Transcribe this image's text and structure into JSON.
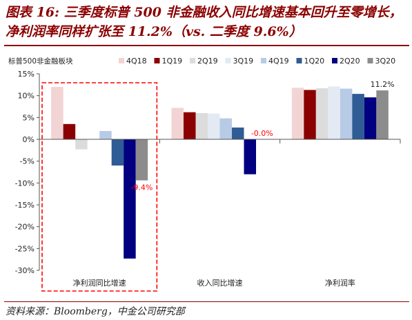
{
  "figure": {
    "title": "图表 16: 三季度标普 500 非金融收入同比增速基本回升至零增长，净利润率同样扩张至 11.2%（vs. 二季度 9.6%）",
    "source": "资料来源：Bloomberg，中金公司研究部"
  },
  "chart_data": {
    "type": "bar",
    "unit_label": "标普500非金融板块",
    "categories": [
      "净利润同比增速",
      "收入同比增速",
      "净利润率"
    ],
    "ylim": [
      -30,
      15
    ],
    "yticks": [
      "15%",
      "10%",
      "5%",
      "0%",
      "-5%",
      "-10%",
      "-15%",
      "-20%",
      "-25%",
      "-30%"
    ],
    "legend_position": "top",
    "grid": false,
    "series": [
      {
        "name": "4Q18",
        "color": "#F2D4D4",
        "values": [
          12.0,
          7.2,
          11.8
        ]
      },
      {
        "name": "1Q19",
        "color": "#8B0000",
        "values": [
          3.5,
          6.2,
          11.3
        ]
      },
      {
        "name": "2Q19",
        "color": "#DCDCDC",
        "values": [
          -2.3,
          6.0,
          11.7
        ]
      },
      {
        "name": "3Q19",
        "color": "#E4EAF4",
        "values": [
          0.0,
          5.9,
          12.1
        ]
      },
      {
        "name": "4Q19",
        "color": "#B7CBE6",
        "values": [
          1.9,
          4.8,
          11.6
        ]
      },
      {
        "name": "1Q20",
        "color": "#2F5C94",
        "values": [
          -6.0,
          2.7,
          10.4
        ]
      },
      {
        "name": "2Q20",
        "color": "#000080",
        "values": [
          -27.3,
          -8.0,
          9.6
        ]
      },
      {
        "name": "3Q20",
        "color": "#8C8C8C",
        "values": [
          -9.4,
          -0.0,
          11.2
        ]
      }
    ],
    "data_labels": [
      {
        "series": "3Q20",
        "category": "净利润同比增速",
        "text": "-9.4%",
        "color": "#FF0000"
      },
      {
        "series": "3Q20",
        "category": "收入同比增速",
        "text": "-0.0%",
        "color": "#FF0000"
      },
      {
        "series": "3Q20",
        "category": "净利润率",
        "text": "11.2%",
        "color": "#222222"
      }
    ],
    "highlight_box": {
      "category": "净利润同比增速",
      "color": "#FF0000",
      "style": "dashed"
    }
  }
}
